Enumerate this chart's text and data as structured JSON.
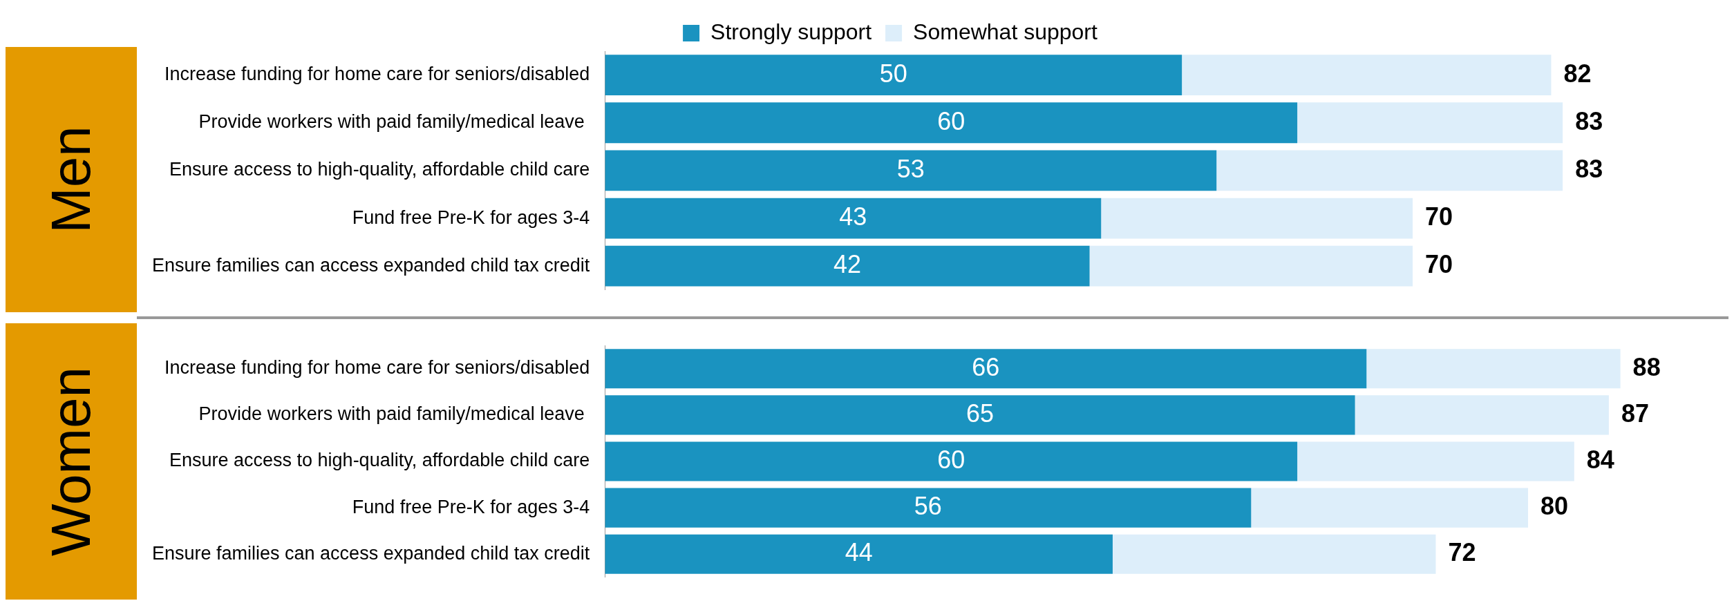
{
  "chart_data": [
    {
      "type": "bar",
      "orientation": "horizontal",
      "stacked": true,
      "ylabel": "Men",
      "legend": "top",
      "categories": [
        "Increase funding for home care for seniors/disabled",
        "Provide workers with paid family/medical leave ",
        "Ensure access to high-quality, affordable child care",
        "Fund free Pre-K for ages 3-4",
        "Ensure families can access expanded child tax credit"
      ],
      "series": [
        {
          "name": "Strongly support",
          "color": "#1a93c0",
          "values": [
            50,
            60,
            53,
            43,
            42
          ],
          "value_labels": [
            "50",
            "60",
            "53",
            "43",
            "42"
          ]
        },
        {
          "name": "Somewhat support",
          "color": "#ddeefa",
          "values": [
            32,
            23,
            30,
            27,
            28
          ]
        }
      ],
      "totals": [
        "82",
        "83",
        "83",
        "70",
        "70"
      ]
    },
    {
      "type": "bar",
      "orientation": "horizontal",
      "stacked": true,
      "ylabel": "Women",
      "legend": false,
      "categories": [
        "Increase funding for home care for seniors/disabled",
        "Provide workers with paid family/medical leave ",
        "Ensure access to high-quality, affordable child care",
        "Fund free Pre-K for ages 3-4",
        "Ensure families can access expanded child tax credit"
      ],
      "series": [
        {
          "color": "#1a93c0",
          "values": [
            66,
            65,
            60,
            56,
            44
          ],
          "value_labels": [
            "66",
            "65",
            "60",
            "56",
            "44"
          ]
        },
        {
          "color": "#ddeefa",
          "values": [
            22,
            22,
            24,
            24,
            28
          ]
        }
      ],
      "totals": [
        "88",
        "87",
        "84",
        "80",
        "72"
      ]
    }
  ]
}
